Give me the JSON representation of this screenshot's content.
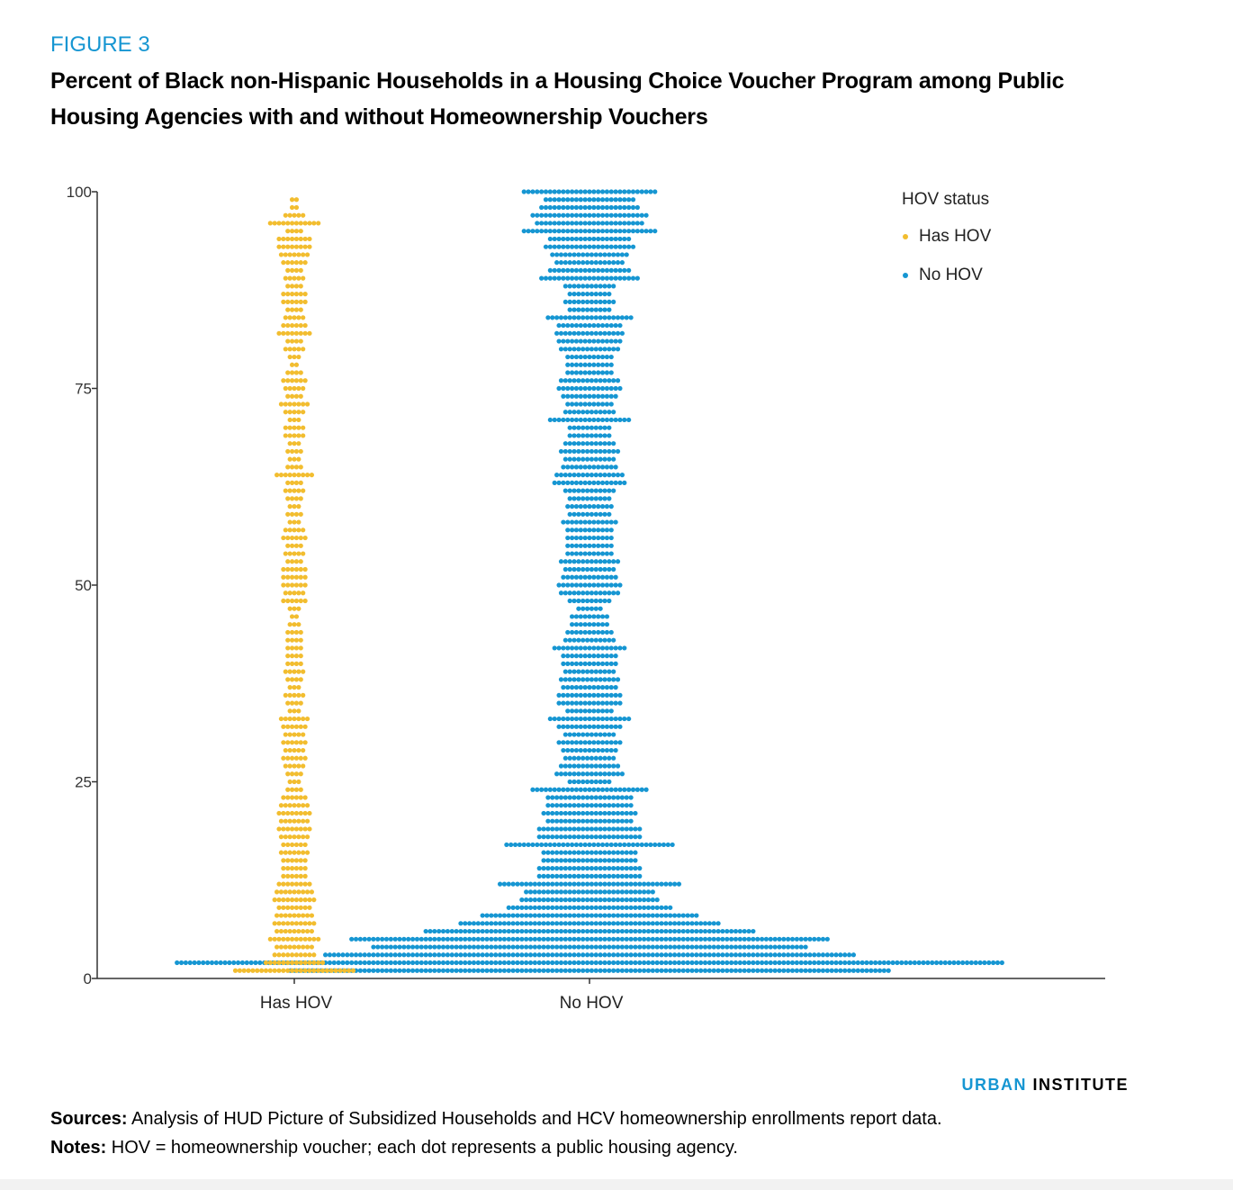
{
  "figure_label": "FIGURE 3",
  "title": "Percent of Black non-Hispanic Households in a Housing Choice Voucher Program among Public Housing Agencies with and without Homeownership Vouchers",
  "brand": {
    "part1": "URBAN",
    "part2": "INSTITUTE"
  },
  "sources": {
    "label": "Sources:",
    "text": " Analysis of HUD Picture of Subsidized Households and HCV homeownership enrollments report data."
  },
  "notes": {
    "label": "Notes:",
    "text": " HOV = homeownership voucher; each dot represents a public housing agency."
  },
  "chart_data": {
    "type": "scatter",
    "subtype": "dot-plot",
    "ylabel": "",
    "xlabel": "",
    "ylim": [
      0,
      100
    ],
    "yticks": [
      0,
      25,
      50,
      75,
      100
    ],
    "categories": [
      "Has HOV",
      "No HOV"
    ],
    "legend": {
      "title": "HOV status",
      "placement": "top-right"
    },
    "series": [
      {
        "name": "Has HOV",
        "color": "#f2bd2f",
        "bins": [
          [
            1,
            28
          ],
          [
            2,
            14
          ],
          [
            3,
            10
          ],
          [
            4,
            9
          ],
          [
            5,
            12
          ],
          [
            6,
            9
          ],
          [
            7,
            10
          ],
          [
            8,
            9
          ],
          [
            9,
            8
          ],
          [
            10,
            10
          ],
          [
            11,
            9
          ],
          [
            12,
            8
          ],
          [
            13,
            6
          ],
          [
            14,
            6
          ],
          [
            15,
            6
          ],
          [
            16,
            7
          ],
          [
            17,
            6
          ],
          [
            18,
            7
          ],
          [
            19,
            8
          ],
          [
            20,
            7
          ],
          [
            21,
            8
          ],
          [
            22,
            7
          ],
          [
            23,
            6
          ],
          [
            24,
            4
          ],
          [
            25,
            3
          ],
          [
            26,
            4
          ],
          [
            27,
            5
          ],
          [
            28,
            6
          ],
          [
            29,
            5
          ],
          [
            30,
            6
          ],
          [
            31,
            5
          ],
          [
            32,
            6
          ],
          [
            33,
            7
          ],
          [
            34,
            3
          ],
          [
            35,
            4
          ],
          [
            36,
            5
          ],
          [
            37,
            3
          ],
          [
            38,
            4
          ],
          [
            39,
            5
          ],
          [
            40,
            4
          ],
          [
            41,
            4
          ],
          [
            42,
            4
          ],
          [
            43,
            4
          ],
          [
            44,
            4
          ],
          [
            45,
            3
          ],
          [
            46,
            2
          ],
          [
            47,
            3
          ],
          [
            48,
            6
          ],
          [
            49,
            5
          ],
          [
            50,
            6
          ],
          [
            51,
            6
          ],
          [
            52,
            6
          ],
          [
            53,
            4
          ],
          [
            54,
            5
          ],
          [
            55,
            4
          ],
          [
            56,
            6
          ],
          [
            57,
            5
          ],
          [
            58,
            3
          ],
          [
            59,
            4
          ],
          [
            60,
            3
          ],
          [
            61,
            4
          ],
          [
            62,
            5
          ],
          [
            63,
            4
          ],
          [
            64,
            9
          ],
          [
            65,
            4
          ],
          [
            66,
            3
          ],
          [
            67,
            4
          ],
          [
            68,
            3
          ],
          [
            69,
            5
          ],
          [
            70,
            5
          ],
          [
            71,
            3
          ],
          [
            72,
            5
          ],
          [
            73,
            7
          ],
          [
            74,
            4
          ],
          [
            75,
            5
          ],
          [
            76,
            6
          ],
          [
            77,
            4
          ],
          [
            78,
            2
          ],
          [
            79,
            3
          ],
          [
            80,
            5
          ],
          [
            81,
            4
          ],
          [
            82,
            8
          ],
          [
            83,
            6
          ],
          [
            84,
            5
          ],
          [
            85,
            4
          ],
          [
            86,
            6
          ],
          [
            87,
            6
          ],
          [
            88,
            4
          ],
          [
            89,
            5
          ],
          [
            90,
            4
          ],
          [
            91,
            6
          ],
          [
            92,
            7
          ],
          [
            93,
            8
          ],
          [
            94,
            8
          ],
          [
            95,
            4
          ],
          [
            96,
            12
          ],
          [
            97,
            5
          ],
          [
            98,
            2
          ],
          [
            99,
            2
          ]
        ]
      },
      {
        "name": "No HOV",
        "color": "#1696d2",
        "bins": [
          [
            1,
            138
          ],
          [
            2,
            190
          ],
          [
            3,
            122
          ],
          [
            4,
            100
          ],
          [
            5,
            110
          ],
          [
            6,
            76
          ],
          [
            7,
            60
          ],
          [
            8,
            50
          ],
          [
            9,
            38
          ],
          [
            10,
            32
          ],
          [
            11,
            30
          ],
          [
            12,
            42
          ],
          [
            13,
            24
          ],
          [
            14,
            24
          ],
          [
            15,
            22
          ],
          [
            16,
            22
          ],
          [
            17,
            39
          ],
          [
            18,
            24
          ],
          [
            19,
            24
          ],
          [
            20,
            20
          ],
          [
            21,
            22
          ],
          [
            22,
            20
          ],
          [
            23,
            20
          ],
          [
            24,
            27
          ],
          [
            25,
            10
          ],
          [
            26,
            16
          ],
          [
            27,
            14
          ],
          [
            28,
            12
          ],
          [
            29,
            13
          ],
          [
            30,
            15
          ],
          [
            31,
            12
          ],
          [
            32,
            15
          ],
          [
            33,
            19
          ],
          [
            34,
            11
          ],
          [
            35,
            15
          ],
          [
            36,
            15
          ],
          [
            37,
            13
          ],
          [
            38,
            14
          ],
          [
            39,
            12
          ],
          [
            40,
            13
          ],
          [
            41,
            13
          ],
          [
            42,
            17
          ],
          [
            43,
            12
          ],
          [
            44,
            11
          ],
          [
            45,
            9
          ],
          [
            46,
            9
          ],
          [
            47,
            6
          ],
          [
            48,
            10
          ],
          [
            49,
            14
          ],
          [
            50,
            15
          ],
          [
            51,
            13
          ],
          [
            52,
            12
          ],
          [
            53,
            14
          ],
          [
            54,
            11
          ],
          [
            55,
            11
          ],
          [
            56,
            11
          ],
          [
            57,
            11
          ],
          [
            58,
            13
          ],
          [
            59,
            10
          ],
          [
            60,
            11
          ],
          [
            61,
            10
          ],
          [
            62,
            12
          ],
          [
            63,
            17
          ],
          [
            64,
            16
          ],
          [
            65,
            13
          ],
          [
            66,
            12
          ],
          [
            67,
            14
          ],
          [
            68,
            12
          ],
          [
            69,
            10
          ],
          [
            70,
            10
          ],
          [
            71,
            19
          ],
          [
            72,
            12
          ],
          [
            73,
            11
          ],
          [
            74,
            13
          ],
          [
            75,
            15
          ],
          [
            76,
            14
          ],
          [
            77,
            11
          ],
          [
            78,
            11
          ],
          [
            79,
            11
          ],
          [
            80,
            14
          ],
          [
            81,
            15
          ],
          [
            82,
            16
          ],
          [
            83,
            15
          ],
          [
            84,
            20
          ],
          [
            85,
            10
          ],
          [
            86,
            12
          ],
          [
            87,
            10
          ],
          [
            88,
            12
          ],
          [
            89,
            23
          ],
          [
            90,
            19
          ],
          [
            91,
            16
          ],
          [
            92,
            18
          ],
          [
            93,
            21
          ],
          [
            94,
            19
          ],
          [
            95,
            31
          ],
          [
            96,
            25
          ],
          [
            97,
            27
          ],
          [
            98,
            23
          ],
          [
            99,
            21
          ],
          [
            100,
            31
          ]
        ]
      }
    ]
  }
}
